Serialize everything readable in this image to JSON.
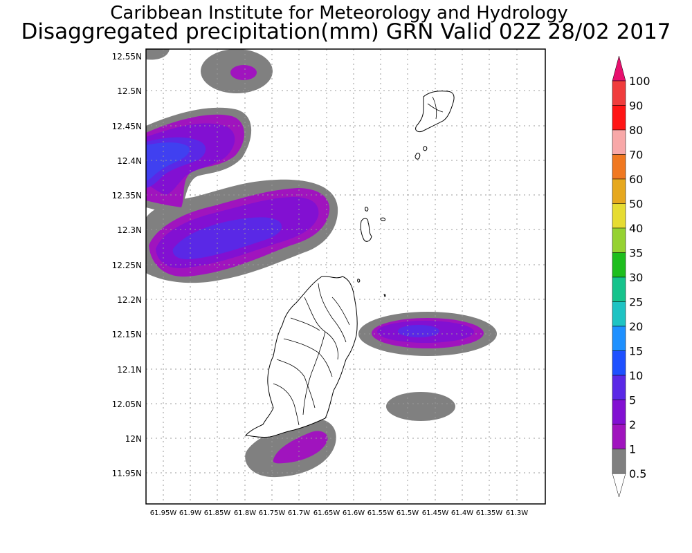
{
  "header": {
    "line1": "Caribbean Institute for Meteorology and Hydrology",
    "line2": "Disaggregated precipitation(mm) GRN Valid 02Z 28/02 2017"
  },
  "map": {
    "lat_labels": [
      "12.55N",
      "12.5N",
      "12.45N",
      "12.4N",
      "12.35N",
      "12.3N",
      "12.25N",
      "12.2N",
      "12.15N",
      "12.1N",
      "12.05N",
      "12N",
      "11.95N"
    ],
    "lon_labels": [
      "61.95W",
      "61.9W",
      "61.85W",
      "61.8W",
      "61.75W",
      "61.7W",
      "61.65W",
      "61.6W",
      "61.55W",
      "61.5W",
      "61.45W",
      "61.4W",
      "61.35W",
      "61.3W"
    ]
  },
  "legend": {
    "levels": [
      {
        "label": "100",
        "color": "#e8106e"
      },
      {
        "label": "90",
        "color": "#f03c3c"
      },
      {
        "label": "80",
        "color": "#ff1414"
      },
      {
        "label": "70",
        "color": "#f8a8a8"
      },
      {
        "label": "60",
        "color": "#f07820"
      },
      {
        "label": "50",
        "color": "#e6a81e"
      },
      {
        "label": "40",
        "color": "#e6dc32"
      },
      {
        "label": "35",
        "color": "#96d232"
      },
      {
        "label": "30",
        "color": "#1ebe1e"
      },
      {
        "label": "25",
        "color": "#16c38c"
      },
      {
        "label": "20",
        "color": "#1ec3c3"
      },
      {
        "label": "15",
        "color": "#1e90ff"
      },
      {
        "label": "10",
        "color": "#1e50ff"
      },
      {
        "label": "5",
        "color": "#5a28e6"
      },
      {
        "label": "2",
        "color": "#8210d2"
      },
      {
        "label": "1",
        "color": "#a014be"
      },
      {
        "label": "0.5",
        "color": "#808080"
      }
    ]
  },
  "colors": {
    "gray": "#808080",
    "magenta": "#a014be",
    "purple": "#8210d2",
    "violet": "#5a28e6",
    "blue": "#4040f0"
  }
}
